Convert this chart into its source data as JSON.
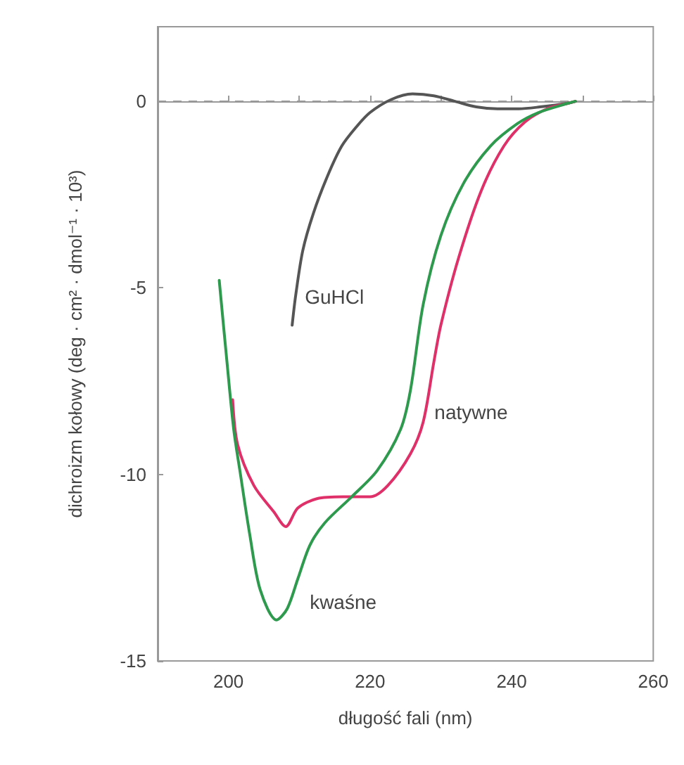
{
  "chart_data": {
    "type": "line",
    "xlabel": "długość fali (nm)",
    "ylabel": "dichroizm kołowy (deg · cm² · dmol⁻¹ · 10³)",
    "xlim": [
      190,
      260
    ],
    "xticks": [
      200,
      {
        "value": 210,
        "label": null
      },
      220,
      {
        "value": 230,
        "label": null
      },
      240,
      {
        "value": 250,
        "label": null
      },
      260
    ],
    "ylim": [
      -15,
      2
    ],
    "yticks": [
      0,
      -5,
      -10,
      -15
    ],
    "grid": false,
    "legend": false,
    "marker": "none",
    "line_style": "solid",
    "series": [
      {
        "name": "GuHCl",
        "color": "#555555",
        "x": [
          209,
          209.5,
          210.5,
          212,
          214,
          216,
          218,
          220,
          223,
          226,
          229,
          232,
          235,
          238,
          241,
          244,
          248,
          249
        ],
        "values": [
          -6.0,
          -5.2,
          -4.0,
          -3.0,
          -2.0,
          -1.2,
          -0.7,
          -0.3,
          0.05,
          0.2,
          0.15,
          0,
          -0.15,
          -0.2,
          -0.2,
          -0.15,
          -0.05,
          0
        ]
      },
      {
        "name": "natywne",
        "color": "#e0306a",
        "x": [
          200.6,
          201.3,
          203.6,
          206.4,
          208.1,
          209.8,
          212.5,
          216.2,
          220,
          222.5,
          225.7,
          227.5,
          229,
          230,
          232.5,
          235.7,
          238.9,
          241.9,
          245,
          248,
          249
        ],
        "values": [
          -8.0,
          -9.2,
          -10.3,
          -11.0,
          -11.4,
          -10.9,
          -10.65,
          -10.6,
          -10.6,
          -10.3,
          -9.45,
          -8.6,
          -7.0,
          -6.0,
          -4.2,
          -2.4,
          -1.2,
          -0.55,
          -0.2,
          -0.05,
          0
        ]
      },
      {
        "name": "kwaśne",
        "color": "#2e9a4e",
        "x": [
          198.7,
          199.8,
          200.75,
          201.7,
          203,
          204.5,
          206.8,
          208.3,
          209.8,
          211.5,
          213.6,
          217.4,
          221,
          224.3,
          225.7,
          227.5,
          230,
          233.2,
          237,
          240.8,
          243.8,
          248,
          249
        ],
        "values": [
          -4.8,
          -7.0,
          -8.8,
          -10.0,
          -11.6,
          -13.1,
          -13.9,
          -13.6,
          -12.8,
          -11.9,
          -11.3,
          -10.6,
          -9.9,
          -8.8,
          -7.75,
          -5.45,
          -3.6,
          -2.2,
          -1.2,
          -0.6,
          -0.3,
          -0.05,
          0
        ]
      }
    ],
    "ref_lines": [
      {
        "axis": "y",
        "value": 0,
        "label": null,
        "color": "#999999",
        "line_style": "dashed"
      }
    ]
  }
}
